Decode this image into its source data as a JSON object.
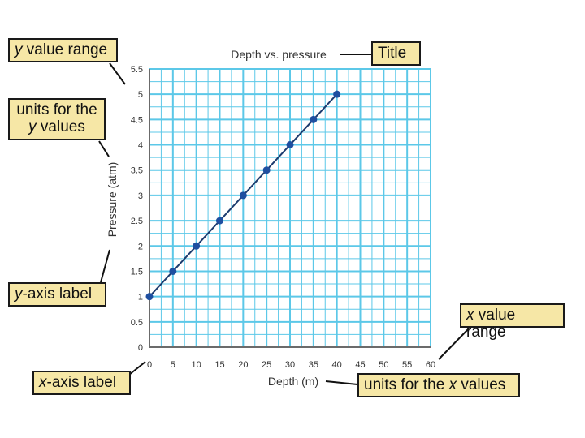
{
  "chart_data": {
    "type": "line",
    "title": "Depth vs. pressure",
    "xlabel": "Depth (m)",
    "ylabel": "Pressure (atm)",
    "x_ticks": [
      "0",
      "5",
      "10",
      "15",
      "20",
      "25",
      "30",
      "35",
      "40",
      "45",
      "50",
      "55",
      "60"
    ],
    "y_ticks": [
      "0",
      "0.5",
      "1",
      "1.5",
      "2",
      "2.5",
      "3",
      "3.5",
      "4",
      "4.5",
      "5",
      "5.5"
    ],
    "xlim": [
      0,
      60
    ],
    "ylim": [
      0,
      5.5
    ],
    "grid": true,
    "series": [
      {
        "x": [
          0,
          5,
          10,
          15,
          20,
          25,
          30,
          35,
          40
        ],
        "y": [
          1,
          1.5,
          2,
          2.5,
          3,
          3.5,
          4,
          4.5,
          5
        ]
      }
    ],
    "colors": {
      "grid": "#5cc8e8",
      "line": "#1c3b6e",
      "point": "#1f4fa0",
      "axis": "#6b6b6b"
    }
  },
  "callouts": {
    "y_range": {
      "pre": "y",
      "post": " value range"
    },
    "y_units": {
      "line1": "units for the",
      "pre": "y",
      "post": " values"
    },
    "y_axis_label": {
      "pre": "y",
      "post": "-axis label"
    },
    "x_axis_label": {
      "pre": "x",
      "post": "-axis label"
    },
    "title": {
      "text": "Title"
    },
    "x_range": {
      "pre": "x",
      "post": " value range"
    },
    "x_units": {
      "pre": "units for the ",
      "var": "x",
      "post": " values"
    },
    "fill": "#f6e7a6"
  }
}
